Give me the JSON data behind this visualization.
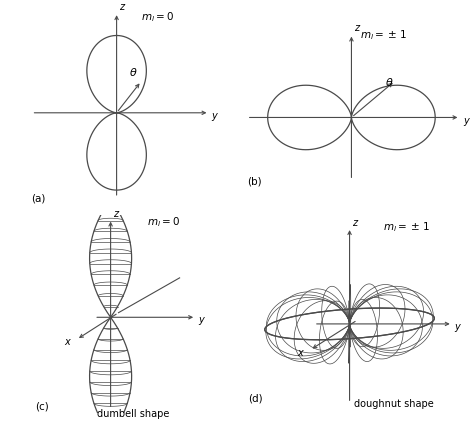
{
  "bg_color": "#ffffff",
  "line_color": "#4a4a4a",
  "lw_main": 0.9,
  "lw_thin": 0.5,
  "panels": [
    "a",
    "b",
    "c",
    "d"
  ]
}
